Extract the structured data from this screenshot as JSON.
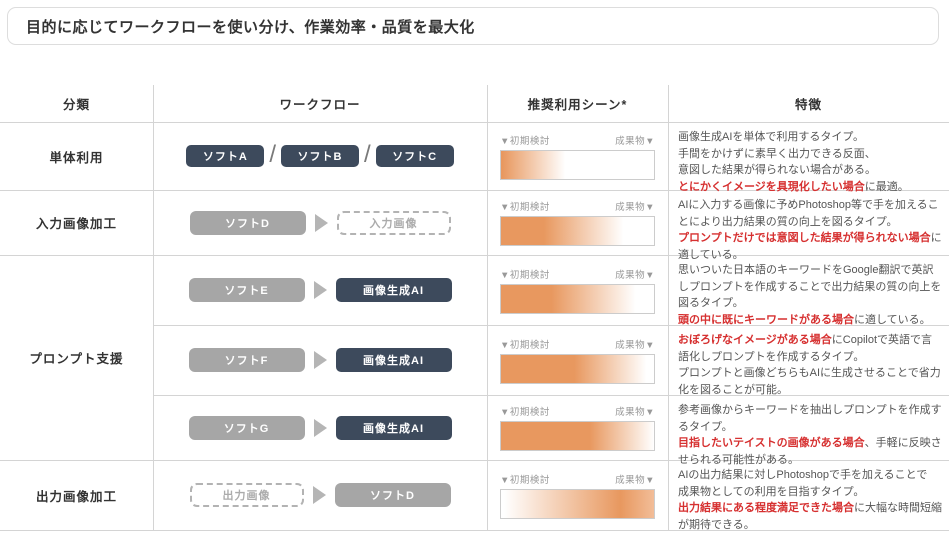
{
  "title": "目的に応じてワークフローを使い分け、作業効率・品質を最大化",
  "colors": {
    "navy": "#3d4a5c",
    "gray_node": "#a6a6a6",
    "orange": "#e8985f",
    "red_highlight": "#d63030",
    "divider": "#d4d4d4",
    "label_gray": "#999999"
  },
  "table": {
    "headers": [
      "分類",
      "ワークフロー",
      "推奨利用シーン*",
      "特徴"
    ],
    "scene_left_label": "▼初期検討",
    "scene_right_label": "成果物▼",
    "rows": [
      {
        "category": "単体利用",
        "rowspan": 1,
        "workflow": {
          "type": "slash",
          "items": [
            {
              "label": "ソフトA",
              "style": "navy"
            },
            {
              "label": "ソフトB",
              "style": "navy"
            },
            {
              "label": "ソフトC",
              "style": "navy"
            }
          ]
        },
        "gradient": "linear-gradient(to right, #e8985f 1%, #ffffff 42%)",
        "feature": [
          {
            "text": "画像生成AIを単体で利用するタイプ。\n手間をかけずに素早く出力できる反面、\n意図した結果が得られない場合がある。\n",
            "red": false
          },
          {
            "text": "とにかくイメージを具現化したい場合",
            "red": true
          },
          {
            "text": "に最適。",
            "red": false
          }
        ]
      },
      {
        "category": "入力画像加工",
        "rowspan": 1,
        "workflow": {
          "type": "flow",
          "items": [
            {
              "label": "ソフトD",
              "style": "gray"
            },
            {
              "label": "入力画像",
              "style": "dashed"
            }
          ]
        },
        "gradient": "linear-gradient(to right, #e8985f 28%, #ffffff 80%)",
        "feature": [
          {
            "text": "AIに入力する画像に予めPhotoshop等で手を加えることにより出力結果の質の向上を図るタイプ。\n",
            "red": false
          },
          {
            "text": "プロンプトだけでは意図した結果が得られない場合",
            "red": true
          },
          {
            "text": "に適している。",
            "red": false
          }
        ]
      },
      {
        "category": "プロンプト支援",
        "rowspan": 3,
        "workflow": {
          "type": "flow",
          "items": [
            {
              "label": "ソフトE",
              "style": "gray"
            },
            {
              "label": "画像生成AI",
              "style": "navy wide"
            }
          ]
        },
        "gradient": "linear-gradient(to right, #e8985f 33%, #ffffff 88%)",
        "feature": [
          {
            "text": "思いついた日本語のキーワードをGoogle翻訳で英訳しプロンプトを作成することで出力結果の質の向上を図るタイプ。\n",
            "red": false
          },
          {
            "text": "頭の中に既にキーワードがある場合",
            "red": true
          },
          {
            "text": "に適している。",
            "red": false
          }
        ]
      },
      {
        "category": null,
        "rowspan": 1,
        "workflow": {
          "type": "flow",
          "items": [
            {
              "label": "ソフトF",
              "style": "gray"
            },
            {
              "label": "画像生成AI",
              "style": "navy wide"
            }
          ]
        },
        "gradient": "linear-gradient(to right, #e8985f 48%, #ffffff 95%)",
        "feature": [
          {
            "text": "おぼろげなイメージがある場合",
            "red": true
          },
          {
            "text": "にCopilotで英語で言語化しプロンプトを作成するタイプ。\nプロンプトと画像どちらもAIに生成させることで省力化を図ることが可能。",
            "red": false
          }
        ]
      },
      {
        "category": null,
        "rowspan": 1,
        "workflow": {
          "type": "flow",
          "items": [
            {
              "label": "ソフトG",
              "style": "gray"
            },
            {
              "label": "画像生成AI",
              "style": "navy wide"
            }
          ]
        },
        "gradient": "linear-gradient(to right, #e8985f 58%, #ffffff 100%)",
        "feature": [
          {
            "text": "参考画像からキーワードを抽出しプロンプトを作成するタイプ。\n",
            "red": false
          },
          {
            "text": "目指したいテイストの画像がある場合",
            "red": true
          },
          {
            "text": "、手軽に反映させられる可能性がある。",
            "red": false
          }
        ]
      },
      {
        "category": "出力画像加工",
        "rowspan": 1,
        "workflow": {
          "type": "flow",
          "items": [
            {
              "label": "出力画像",
              "style": "dashed"
            },
            {
              "label": "ソフトD",
              "style": "gray"
            }
          ]
        },
        "gradient": "linear-gradient(to right, #ffffff 2%, #e8985f 78%, #f2bd98 100%)",
        "feature": [
          {
            "text": "AIの出力結果に対しPhotoshopで手を加えることで\n成果物としての利用を目指すタイプ。\n",
            "red": false
          },
          {
            "text": "出力結果にある程度満足できた場合",
            "red": true
          },
          {
            "text": "に大幅な時間短縮が期待できる。",
            "red": false
          }
        ]
      }
    ]
  }
}
